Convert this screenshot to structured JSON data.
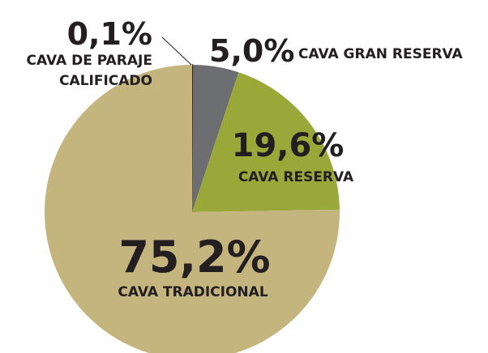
{
  "chart_data": {
    "type": "pie",
    "categories": [
      "CAVA DE PARAJE CALIFICADO",
      "CAVA GRAN RESERVA",
      "CAVA RESERVA",
      "CAVA TRADICIONAL"
    ],
    "values": [
      0.1,
      5.0,
      19.6,
      75.2
    ],
    "value_labels": [
      "0,1%",
      "5,0%",
      "19,6%",
      "75,2%"
    ],
    "colors": [
      "#2b2b2b",
      "#6d6e71",
      "#9aa83a",
      "#c4b47e"
    ]
  }
}
